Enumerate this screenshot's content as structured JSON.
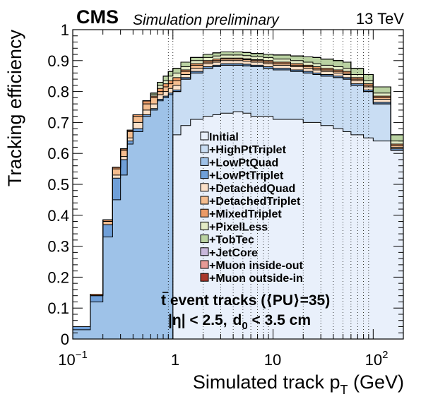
{
  "header": {
    "experiment": "CMS",
    "subtitle": "Simulation preliminary",
    "energy": "13 TeV"
  },
  "annotations": {
    "line1_t": "t",
    "line1_rest": " event tracks (⟨PU⟩=35)",
    "line2_eta": "|η| < 2.5,",
    "line2_d0_main": "d",
    "line2_d0_sub": "0",
    "line2_d0_rest": " < 3.5 cm"
  },
  "chart_data": {
    "type": "area",
    "stacked": true,
    "histogram": true,
    "title": "",
    "xlabel_main": "Simulated track p",
    "xlabel_sub": "T",
    "xlabel_unit": " (GeV)",
    "ylabel": "Tracking efficiency",
    "xscale": "log",
    "xlim": [
      0.1,
      200
    ],
    "ylim": [
      0,
      1
    ],
    "x_ticks": [
      {
        "value": 0.1,
        "base": "10",
        "exp": "−1"
      },
      {
        "value": 1,
        "label": "1"
      },
      {
        "value": 10,
        "label": "10"
      },
      {
        "value": 100,
        "base": "10",
        "exp": "2"
      }
    ],
    "y_ticks": [
      "0",
      "0.1",
      "0.2",
      "0.3",
      "0.4",
      "0.5",
      "0.6",
      "0.7",
      "0.8",
      "0.9",
      "1"
    ],
    "vertical_grid": "dotted at 0.9, 1, 2 … 9, 20 … 90",
    "legend_position": "inside, middle-right",
    "bin_edges": [
      0.1,
      0.15,
      0.2,
      0.25,
      0.3,
      0.35,
      0.4,
      0.5,
      0.6,
      0.7,
      0.8,
      0.9,
      1.0,
      1.2,
      1.5,
      2.0,
      2.5,
      3.0,
      4.0,
      5.0,
      6.0,
      8.0,
      10,
      15,
      20,
      25,
      30,
      40,
      50,
      60,
      80,
      100,
      150,
      200
    ],
    "series": [
      {
        "name": "Initial",
        "color": "#e9f0fb",
        "values": [
          0.0,
          0.0,
          0.0,
          0.0,
          0.0,
          0.0,
          0.0,
          0.0,
          0.0,
          0.0,
          0.0,
          0.0,
          0.66,
          0.69,
          0.71,
          0.72,
          0.725,
          0.73,
          0.735,
          0.73,
          0.72,
          0.72,
          0.71,
          0.71,
          0.7,
          0.7,
          0.69,
          0.68,
          0.67,
          0.66,
          0.65,
          0.64,
          0.61
        ]
      },
      {
        "name": "+HighPtTriplet",
        "color": "#c9ddf3",
        "values": [
          0.0,
          0.0,
          0.0,
          0.0,
          0.0,
          0.0,
          0.0,
          0.0,
          0.0,
          0.0,
          0.0,
          0.0,
          0.8,
          0.84,
          0.86,
          0.875,
          0.88,
          0.885,
          0.885,
          0.883,
          0.88,
          0.875,
          0.87,
          0.865,
          0.86,
          0.855,
          0.85,
          0.845,
          0.84,
          0.82,
          0.8,
          0.76,
          0.61
        ]
      },
      {
        "name": "+LowPtQuad",
        "color": "#9ec2e8",
        "values": [
          0.03,
          0.12,
          0.33,
          0.45,
          0.53,
          0.63,
          0.67,
          0.72,
          0.74,
          0.77,
          0.78,
          0.79,
          0.8,
          0.84,
          0.86,
          0.875,
          0.88,
          0.885,
          0.885,
          0.883,
          0.88,
          0.875,
          0.87,
          0.865,
          0.86,
          0.855,
          0.85,
          0.845,
          0.84,
          0.82,
          0.8,
          0.76,
          0.61
        ]
      },
      {
        "name": "+LowPtTriplet",
        "color": "#6f9fd8",
        "values": [
          0.04,
          0.14,
          0.37,
          0.52,
          0.58,
          0.64,
          0.68,
          0.725,
          0.745,
          0.775,
          0.785,
          0.795,
          0.805,
          0.845,
          0.865,
          0.88,
          0.885,
          0.89,
          0.89,
          0.888,
          0.885,
          0.88,
          0.875,
          0.87,
          0.865,
          0.86,
          0.855,
          0.85,
          0.845,
          0.825,
          0.805,
          0.765,
          0.615
        ]
      },
      {
        "name": "+DetachedQuad",
        "color": "#fbe0c8",
        "values": [
          0.04,
          0.14,
          0.37,
          0.53,
          0.59,
          0.65,
          0.7,
          0.74,
          0.76,
          0.79,
          0.8,
          0.81,
          0.82,
          0.855,
          0.875,
          0.89,
          0.895,
          0.9,
          0.9,
          0.898,
          0.895,
          0.89,
          0.885,
          0.88,
          0.875,
          0.87,
          0.865,
          0.86,
          0.855,
          0.835,
          0.815,
          0.775,
          0.62
        ]
      },
      {
        "name": "+DetachedTriplet",
        "color": "#f5bd8f",
        "values": [
          0.04,
          0.14,
          0.38,
          0.55,
          0.61,
          0.67,
          0.72,
          0.76,
          0.78,
          0.8,
          0.815,
          0.825,
          0.835,
          0.865,
          0.885,
          0.895,
          0.9,
          0.905,
          0.905,
          0.903,
          0.9,
          0.895,
          0.89,
          0.885,
          0.88,
          0.875,
          0.87,
          0.865,
          0.86,
          0.84,
          0.82,
          0.78,
          0.625
        ]
      },
      {
        "name": "+MixedTriplet",
        "color": "#eb9a66",
        "values": [
          0.04,
          0.145,
          0.385,
          0.555,
          0.615,
          0.675,
          0.725,
          0.77,
          0.785,
          0.81,
          0.825,
          0.835,
          0.845,
          0.87,
          0.89,
          0.9,
          0.905,
          0.908,
          0.908,
          0.906,
          0.903,
          0.9,
          0.895,
          0.89,
          0.885,
          0.88,
          0.875,
          0.87,
          0.865,
          0.845,
          0.825,
          0.785,
          0.63
        ]
      },
      {
        "name": "+PixelLess",
        "color": "#e3ebc6",
        "values": [
          0.04,
          0.145,
          0.385,
          0.555,
          0.615,
          0.675,
          0.725,
          0.77,
          0.79,
          0.82,
          0.835,
          0.85,
          0.86,
          0.88,
          0.9,
          0.91,
          0.915,
          0.918,
          0.918,
          0.916,
          0.913,
          0.91,
          0.905,
          0.9,
          0.895,
          0.89,
          0.885,
          0.88,
          0.875,
          0.855,
          0.835,
          0.795,
          0.64
        ]
      },
      {
        "name": "+TobTec",
        "color": "#bad2a2",
        "values": [
          0.04,
          0.145,
          0.385,
          0.555,
          0.615,
          0.675,
          0.725,
          0.77,
          0.795,
          0.83,
          0.85,
          0.865,
          0.875,
          0.895,
          0.91,
          0.92,
          0.925,
          0.928,
          0.928,
          0.926,
          0.923,
          0.92,
          0.918,
          0.915,
          0.912,
          0.91,
          0.905,
          0.9,
          0.895,
          0.875,
          0.855,
          0.815,
          0.66
        ]
      },
      {
        "name": "+JetCore",
        "color": "#c9b8dc",
        "values": [
          0.04,
          0.145,
          0.385,
          0.555,
          0.615,
          0.675,
          0.725,
          0.77,
          0.795,
          0.83,
          0.85,
          0.865,
          0.875,
          0.895,
          0.91,
          0.92,
          0.925,
          0.928,
          0.928,
          0.926,
          0.923,
          0.92,
          0.918,
          0.915,
          0.912,
          0.91,
          0.905,
          0.9,
          0.895,
          0.875,
          0.855,
          0.815,
          0.66
        ]
      },
      {
        "name": "+Muon inside-out",
        "color": "#e69a96",
        "values": [
          0.04,
          0.145,
          0.385,
          0.555,
          0.615,
          0.675,
          0.725,
          0.77,
          0.795,
          0.83,
          0.85,
          0.865,
          0.875,
          0.895,
          0.91,
          0.92,
          0.925,
          0.928,
          0.928,
          0.926,
          0.923,
          0.92,
          0.918,
          0.915,
          0.912,
          0.91,
          0.905,
          0.9,
          0.895,
          0.875,
          0.855,
          0.815,
          0.66
        ]
      },
      {
        "name": "+Muon outside-in",
        "color": "#a8382c",
        "values": [
          0.04,
          0.145,
          0.385,
          0.555,
          0.615,
          0.675,
          0.725,
          0.77,
          0.795,
          0.83,
          0.85,
          0.865,
          0.875,
          0.895,
          0.91,
          0.92,
          0.925,
          0.928,
          0.928,
          0.926,
          0.923,
          0.92,
          0.918,
          0.915,
          0.912,
          0.91,
          0.905,
          0.9,
          0.895,
          0.875,
          0.855,
          0.815,
          0.66
        ]
      }
    ]
  }
}
